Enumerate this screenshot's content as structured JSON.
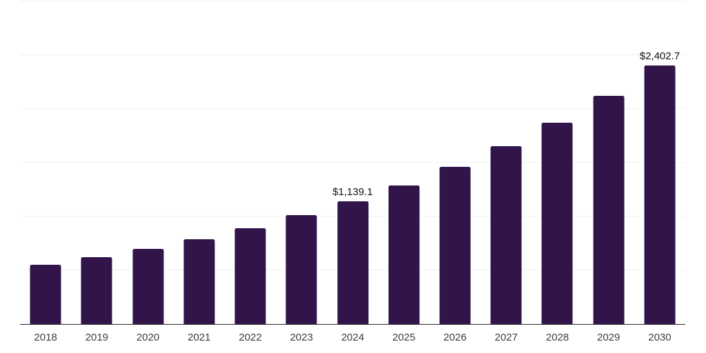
{
  "chart_data": {
    "type": "bar",
    "title": "",
    "xlabel": "",
    "ylabel": "",
    "categories": [
      "2018",
      "2019",
      "2020",
      "2021",
      "2022",
      "2023",
      "2024",
      "2025",
      "2026",
      "2027",
      "2028",
      "2029",
      "2030"
    ],
    "values": [
      550,
      620,
      700,
      790,
      890,
      1010,
      1139.1,
      1290,
      1460,
      1655,
      1875,
      2120,
      2402.7
    ],
    "data_labels": [
      "",
      "",
      "",
      "",
      "",
      "",
      "$1,139.1",
      "",
      "",
      "",
      "",
      "",
      "$2,402.7"
    ],
    "ylim": [
      0,
      3000
    ],
    "gridline_step": 500,
    "grid": true,
    "legend_position": "none",
    "colors": {
      "bar": "#31144a",
      "axis": "#2b2b2b",
      "gridline": "#f0f0f0",
      "tick_label": "#3d3d3d",
      "data_label": "#111111",
      "background": "#ffffff"
    }
  }
}
